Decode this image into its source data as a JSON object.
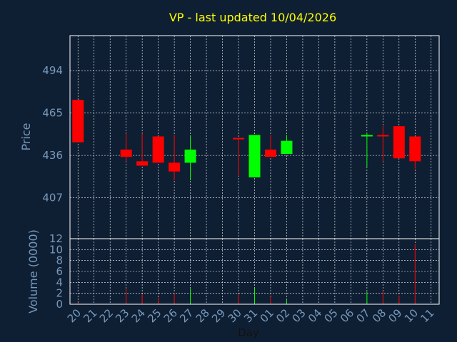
{
  "chart_data": {
    "type": "candlestick",
    "title": "VP - last updated 10/04/2026",
    "price_panel": {
      "ylabel": "Price",
      "yticks": [
        407,
        436,
        465,
        494
      ],
      "ylim": [
        379,
        518
      ]
    },
    "volume_panel": {
      "ylabel": "Volume (0000)",
      "yticks": [
        0,
        2,
        4,
        6,
        8,
        10,
        12
      ],
      "ylim": [
        0,
        12
      ]
    },
    "xlabel": "Day",
    "x_ticks": [
      "20",
      "21",
      "22",
      "23",
      "24",
      "25",
      "26",
      "27",
      "28",
      "29",
      "30",
      "31",
      "01",
      "02",
      "03",
      "04",
      "05",
      "06",
      "07",
      "08",
      "09",
      "10",
      "11"
    ],
    "grid": true,
    "colors": {
      "background": "#0f1f33",
      "plot_border": "#ffffff",
      "grid": "#ffffff",
      "up": "#00ff00",
      "down": "#ff0000",
      "title": "#ffff00",
      "axis_text": "#7799bb"
    },
    "candles": [
      {
        "day": "20",
        "open": 474,
        "high": 474,
        "low": 445,
        "close": 445,
        "volume": 0.3
      },
      {
        "day": "23",
        "open": 440,
        "high": 451,
        "low": 432,
        "close": 435,
        "volume": 2.8
      },
      {
        "day": "24",
        "open": 432,
        "high": 451,
        "low": 429,
        "close": 429,
        "volume": 1.8
      },
      {
        "day": "25",
        "open": 449,
        "high": 449,
        "low": 431,
        "close": 431,
        "volume": 1.2
      },
      {
        "day": "26",
        "open": 431,
        "high": 450,
        "low": 419,
        "close": 425,
        "volume": 2.0
      },
      {
        "day": "27",
        "open": 431,
        "high": 449,
        "low": 419,
        "close": 440,
        "volume": 2.8
      },
      {
        "day": "30",
        "open": 448,
        "high": 448,
        "low": 422,
        "close": 447,
        "volume": 1.8
      },
      {
        "day": "31",
        "open": 421,
        "high": 450,
        "low": 421,
        "close": 450,
        "volume": 2.9
      },
      {
        "day": "01",
        "open": 440,
        "high": 450,
        "low": 435,
        "close": 435,
        "volume": 1.4
      },
      {
        "day": "02",
        "open": 437,
        "high": 450,
        "low": 437,
        "close": 446,
        "volume": 0.8
      },
      {
        "day": "07",
        "open": 449,
        "high": 451,
        "low": 428,
        "close": 450,
        "volume": 2.3
      },
      {
        "day": "08",
        "open": 450,
        "high": 456,
        "low": 432,
        "close": 449,
        "volume": 2.4
      },
      {
        "day": "09",
        "open": 456,
        "high": 456,
        "low": 434,
        "close": 434,
        "volume": 1.6
      },
      {
        "day": "10",
        "open": 449,
        "high": 449,
        "low": 427,
        "close": 432,
        "volume": 11.0
      }
    ]
  }
}
